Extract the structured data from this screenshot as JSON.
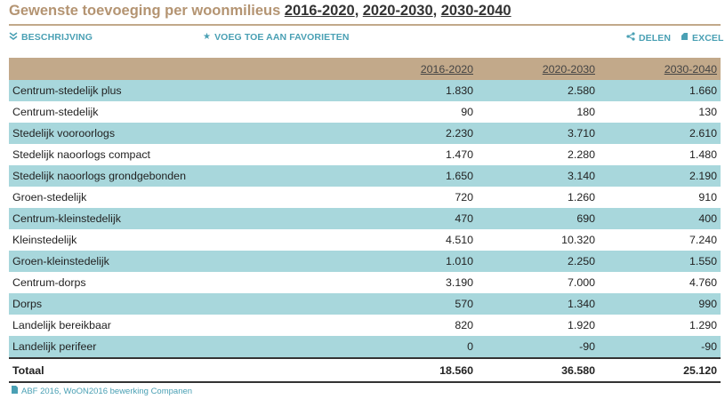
{
  "header": {
    "title": "Gewenste toevoeging per woonmilieus",
    "periods": [
      "2016-2020",
      "2020-2030",
      "2030-2040"
    ],
    "sep": ","
  },
  "actions": {
    "description": "BESCHRIJVING",
    "favorite": "VOEG TOE AAN FAVORIETEN",
    "share": "DELEN",
    "excel": "EXCEL"
  },
  "table": {
    "columns": [
      "",
      "2016-2020",
      "2020-2030",
      "2030-2040"
    ],
    "rows": [
      {
        "name": "Centrum-stedelijk plus",
        "values": [
          "1.830",
          "2.580",
          "1.660"
        ]
      },
      {
        "name": "Centrum-stedelijk",
        "values": [
          "90",
          "180",
          "130"
        ]
      },
      {
        "name": "Stedelijk vooroorlogs",
        "values": [
          "2.230",
          "3.710",
          "2.610"
        ]
      },
      {
        "name": "Stedelijk naoorlogs compact",
        "values": [
          "1.470",
          "2.280",
          "1.480"
        ]
      },
      {
        "name": "Stedelijk naoorlogs grondgebonden",
        "values": [
          "1.650",
          "3.140",
          "2.190"
        ]
      },
      {
        "name": "Groen-stedelijk",
        "values": [
          "720",
          "1.260",
          "910"
        ]
      },
      {
        "name": "Centrum-kleinstedelijk",
        "values": [
          "470",
          "690",
          "400"
        ]
      },
      {
        "name": "Kleinstedelijk",
        "values": [
          "4.510",
          "10.320",
          "7.240"
        ]
      },
      {
        "name": "Groen-kleinstedelijk",
        "values": [
          "1.010",
          "2.250",
          "1.550"
        ]
      },
      {
        "name": "Centrum-dorps",
        "values": [
          "3.190",
          "7.000",
          "4.760"
        ]
      },
      {
        "name": "Dorps",
        "values": [
          "570",
          "1.340",
          "990"
        ]
      },
      {
        "name": "Landelijk bereikbaar",
        "values": [
          "820",
          "1.920",
          "1.290"
        ]
      },
      {
        "name": "Landelijk perifeer",
        "values": [
          "0",
          "-90",
          "-90"
        ]
      }
    ],
    "total": {
      "name": "Totaal",
      "values": [
        "18.560",
        "36.580",
        "25.120"
      ]
    }
  },
  "source": "ABF 2016, WoON2016 bewerking Companen",
  "colors": {
    "accent": "#c2a98a",
    "row_highlight": "#a8d7dc",
    "link": "#4aa0b4"
  }
}
